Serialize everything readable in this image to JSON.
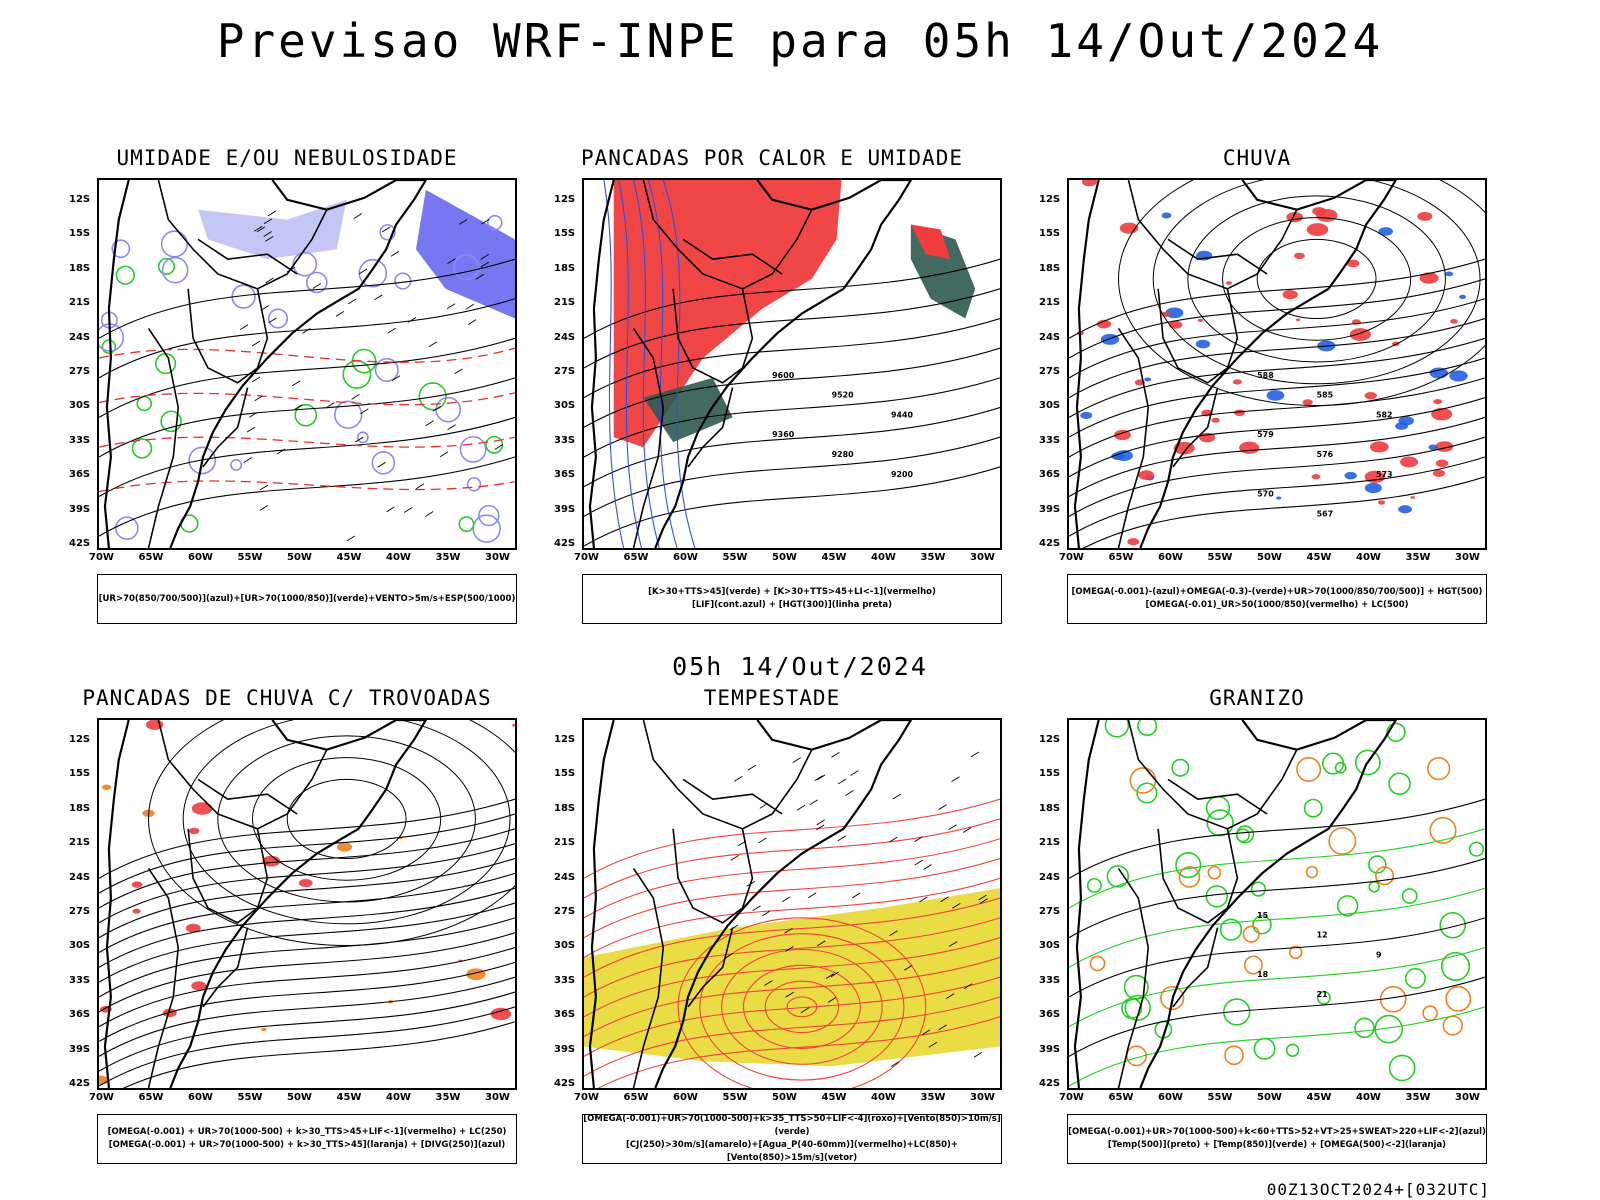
{
  "header": {
    "title": "Previsao WRF-INPE  para 05h 14/Out/2024"
  },
  "mid_time": "05h 14/Out/2024",
  "footer": "00Z13OCT2024+[032UTC]",
  "axes": {
    "lat_labels": [
      "12S",
      "15S",
      "18S",
      "21S",
      "24S",
      "27S",
      "30S",
      "33S",
      "36S",
      "39S",
      "42S"
    ],
    "lon_labels": [
      "70W",
      "65W",
      "60W",
      "55W",
      "50W",
      "45W",
      "40W",
      "35W",
      "30W"
    ]
  },
  "panels": [
    {
      "id": "umidade",
      "title": "UMIDADE E/OU NEBULOSIDADE",
      "legend": [
        "[UR>70(850/700/500)](azul)+[UR>70(1000/850)](verde)+VENTO>5m/s+ESP(500/1000)"
      ],
      "colors": {
        "primary": "#8a8af0",
        "secondary": "#22cc22",
        "lines": "#e03030"
      }
    },
    {
      "id": "pancadas_calor",
      "title": "PANCADAS POR CALOR E UMIDADE",
      "legend": [
        "[K>30+TTS>45](verde) + [K>30+TTS>45+LI<-1](vermelho)",
        "[LIF](cont.azul) + [HGT(300)](linha preta)"
      ],
      "contour_labels": [
        "9600",
        "9520",
        "9440",
        "9360",
        "9280",
        "9200"
      ],
      "colors": {
        "primary": "#f03c3c",
        "secondary": "#2f5a50",
        "lines": "#3050e0"
      }
    },
    {
      "id": "chuva",
      "title": "CHUVA",
      "legend": [
        "[OMEGA(-0.001)-(azul)+OMEGA(-0.3)-(verde)+UR>70(1000/850/700/500)] + HGT(500)",
        "[OMEGA(-0.01)_UR>50(1000/850)(vermelho) + LC(500)"
      ],
      "contour_labels": [
        "588",
        "585",
        "582",
        "579",
        "576",
        "573",
        "570",
        "567"
      ],
      "colors": {
        "primary": "#f03c3c",
        "secondary": "#2060e0",
        "lines": "#000000"
      }
    },
    {
      "id": "trovoadas",
      "title": "PANCADAS DE CHUVA C/ TROVOADAS",
      "legend": [
        "[OMEGA(-0.001) + UR>70(1000-500) + k>30_TTS>45+LIF<-1](vermelho) + LC(250)",
        "[OMEGA(-0.001) + UR>70(1000-500) + k>30_TTS>45](laranja) + [DIVG(250)](azul)"
      ],
      "colors": {
        "primary": "#f03c3c",
        "secondary": "#f08020",
        "lines": "#2050f0"
      }
    },
    {
      "id": "tempestade",
      "title": "TEMPESTADE",
      "legend": [
        "[OMEGA(-0.001)+UR>70(1000-500)+k>35_TTS>50+LIF<-4](roxo)+[Vento(850)>10m/s](verde)",
        "[CJ(250)>30m/s](amarelo)+[Agua_P(40-60mm)](vermelho)+LC(850)+[Vento(850)>15m/s](vetor)"
      ],
      "colors": {
        "primary": "#e8da3a",
        "secondary": "#30c030",
        "lines": "#f04040"
      }
    },
    {
      "id": "granizo",
      "title": "GRANIZO",
      "legend": [
        "[OMEGA(-0.001)+UR>70(1000-500)+k<60+TTS>52+VT>25+SWEAT>220+LIF<-2](azul)",
        "[Temp(500)](preto) + [Temp(850)](verde) + [OMEGA(500)<-2](laranja)"
      ],
      "contour_labels": [
        "15",
        "12",
        "9",
        "18",
        "21"
      ],
      "colors": {
        "primary": "#20d020",
        "secondary": "#f08020",
        "lines": "#000000"
      }
    }
  ]
}
